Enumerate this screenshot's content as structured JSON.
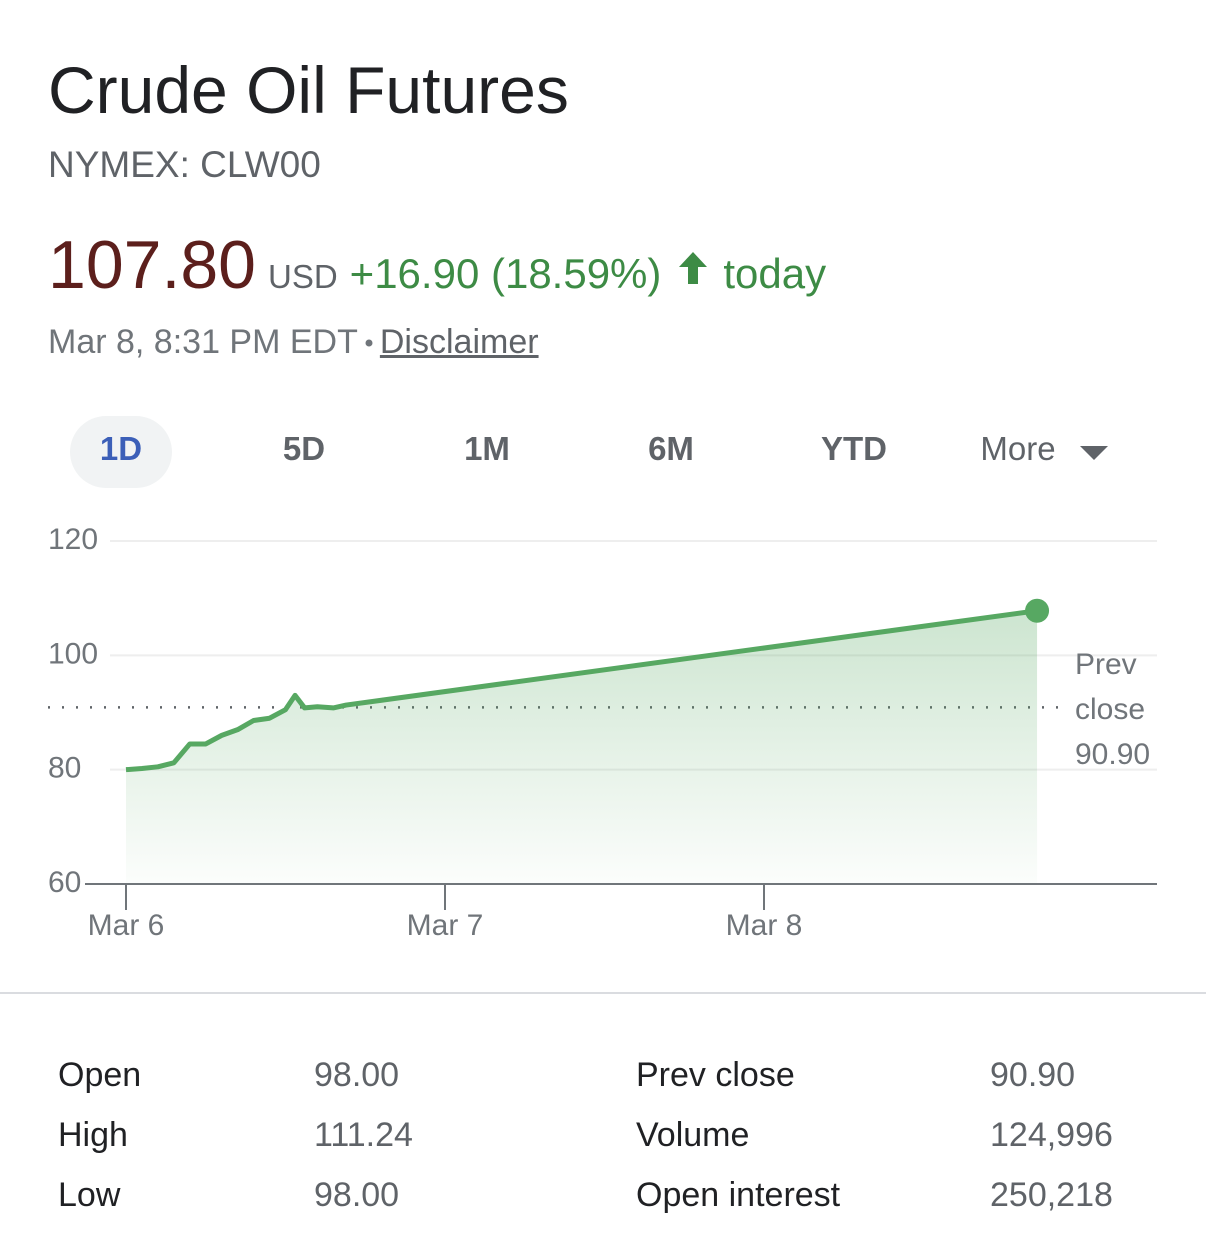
{
  "header": {
    "title": "Crude Oil Futures",
    "ticker": "NYMEX: CLW00",
    "price": "107.80",
    "currency": "USD",
    "change": "+16.90 (18.59%)",
    "period": "today",
    "timestamp": "Mar 8, 8:31 PM EDT",
    "disclaimer": "Disclaimer"
  },
  "tabs": [
    "1D",
    "5D",
    "1M",
    "6M",
    "YTD",
    "More"
  ],
  "chart_data": {
    "type": "line",
    "color": "#57a862",
    "x": [
      0,
      0.05,
      0.1,
      0.15,
      0.2,
      0.25,
      0.3,
      0.35,
      0.4,
      0.45,
      0.5,
      0.53,
      0.56,
      0.6,
      0.65,
      0.69,
      2.856
    ],
    "values": [
      80,
      80.2,
      80.5,
      81.2,
      84.5,
      84.5,
      86,
      87,
      88.6,
      89,
      90.5,
      93,
      90.8,
      91,
      90.8,
      91.3,
      107.8
    ],
    "xlim": [
      -0.1285,
      3.232
    ],
    "xticks": [
      {
        "value": 0,
        "label": "Mar 6"
      },
      {
        "value": 1,
        "label": "Mar 7"
      },
      {
        "value": 2,
        "label": "Mar 8"
      }
    ],
    "ylim": [
      60,
      120
    ],
    "yticks": [
      60,
      80,
      100,
      120
    ],
    "grid": true,
    "reference_line": {
      "value": 90.9,
      "label": "Prev close",
      "value_label": "90.90"
    }
  },
  "stats": {
    "rows": [
      [
        "Open",
        "98.00",
        "Prev close",
        "90.90"
      ],
      [
        "High",
        "111.24",
        "Volume",
        "124,996"
      ],
      [
        "Low",
        "98.00",
        "Open interest",
        "250,218"
      ]
    ]
  }
}
